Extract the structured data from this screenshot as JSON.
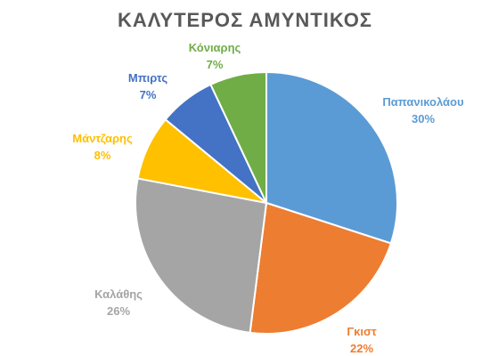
{
  "chart_data": {
    "type": "pie",
    "title": "ΚΑΛΥΤΕΡΟΣ  ΑΜΥΝΤΙΚΟΣ",
    "categories": [
      "Παπανικολάου",
      "Γκιστ",
      "Καλάθης",
      "Μάντζαρης",
      "Μπιρτς",
      "Κόνιαρης"
    ],
    "values": [
      30,
      22,
      26,
      8,
      7,
      7
    ],
    "value_labels": [
      "30%",
      "22%",
      "26%",
      "8%",
      "7%",
      "7%"
    ],
    "colors": [
      "#5b9bd5",
      "#ed7d31",
      "#a5a5a5",
      "#ffc000",
      "#4472c4",
      "#70ad47"
    ],
    "start_angle_deg": 0,
    "direction": "clockwise",
    "legend": "none",
    "data_labels": "outside"
  }
}
